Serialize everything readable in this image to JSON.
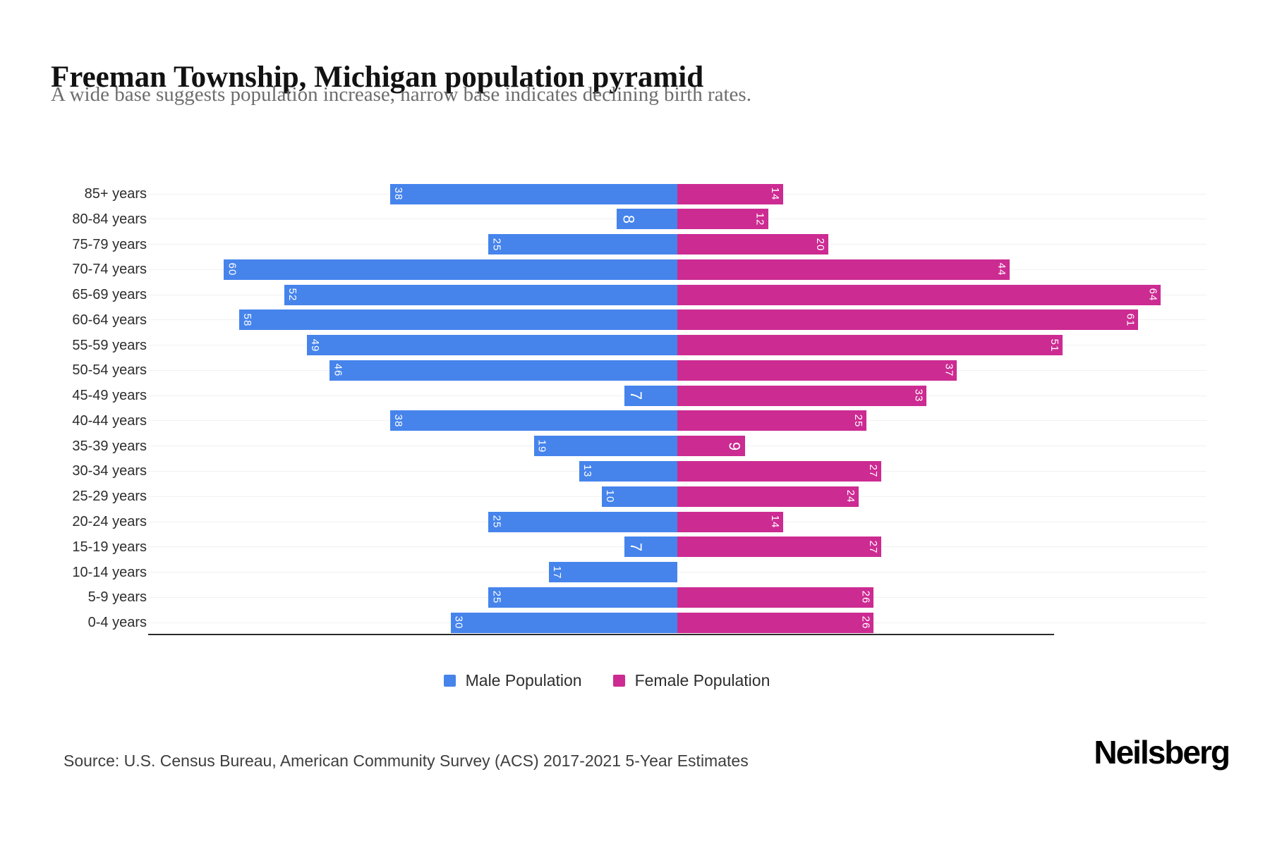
{
  "header": {
    "title": "Freeman Township, Michigan population pyramid",
    "subtitle": "A wide base suggests population increase, narrow base indicates declining birth rates."
  },
  "chart_data": {
    "type": "bar",
    "variant": "population-pyramid",
    "title": "Freeman Township, Michigan population pyramid",
    "subtitle": "A wide base suggests population increase, narrow base indicates declining birth rates.",
    "categories": [
      "85+ years",
      "80-84 years",
      "75-79 years",
      "70-74 years",
      "65-69 years",
      "60-64 years",
      "55-59 years",
      "50-54 years",
      "45-49 years",
      "40-44 years",
      "35-39 years",
      "30-34 years",
      "25-29 years",
      "20-24 years",
      "15-19 years",
      "10-14 years",
      "5-9 years",
      "0-4 years"
    ],
    "series": [
      {
        "name": "Male Population",
        "color": "#4684ec",
        "direction": "left",
        "values": [
          38,
          8,
          25,
          60,
          52,
          58,
          49,
          46,
          7,
          38,
          19,
          13,
          10,
          25,
          7,
          17,
          25,
          30
        ]
      },
      {
        "name": "Female Population",
        "color": "#cc2b92",
        "direction": "right",
        "values": [
          14,
          12,
          20,
          44,
          64,
          61,
          51,
          37,
          33,
          25,
          9,
          27,
          24,
          14,
          27,
          0,
          26,
          26
        ]
      }
    ],
    "xlim": [
      -70,
      70
    ],
    "grid": "horizontal row lines",
    "bar_label_color": "#ffffff",
    "legend_position": "bottom-center"
  },
  "legend": {
    "male_label": "Male Population",
    "female_label": "Female Population"
  },
  "footer": {
    "source": "Source: U.S. Census Bureau, American Community Survey (ACS) 2017-2021 5-Year Estimates",
    "brand": "Neilsberg"
  }
}
